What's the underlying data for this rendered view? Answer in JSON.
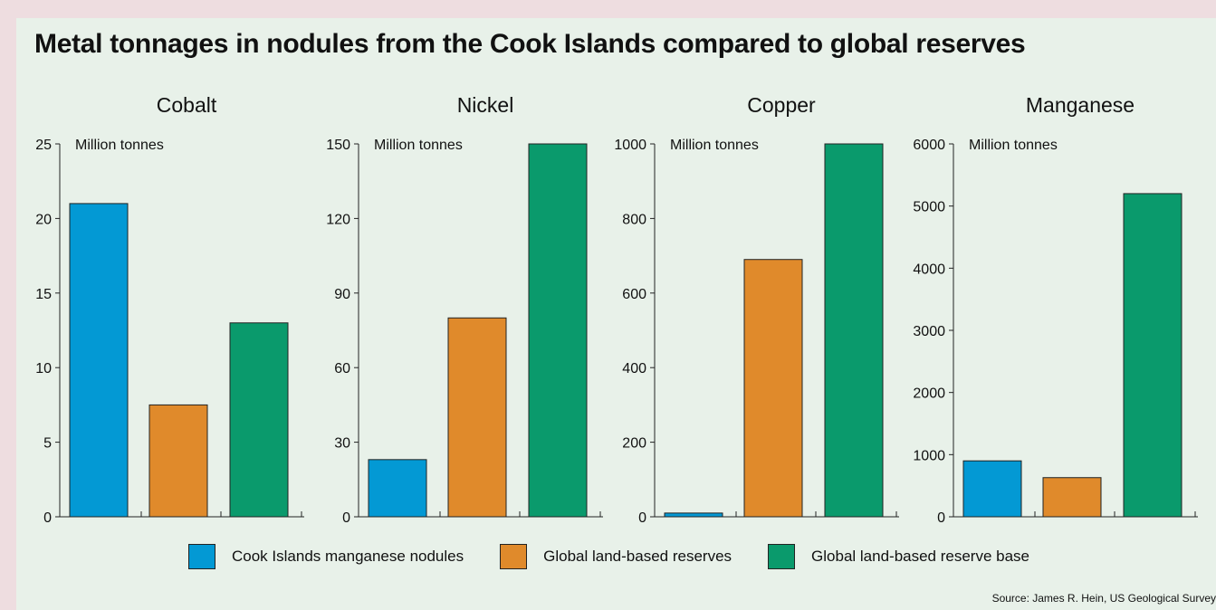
{
  "title": "Metal tonnages in nodules from the Cook Islands compared to global reserves",
  "source": "Source: James R. Hein, US Geological Survey",
  "colors": {
    "cook_islands": "#0399d4",
    "reserves": "#e08a2b",
    "reserve_base": "#0a9a6c"
  },
  "legend": [
    {
      "label": "Cook Islands manganese nodules",
      "color": "#0399d4"
    },
    {
      "label": "Global land-based reserves",
      "color": "#e08a2b"
    },
    {
      "label": "Global land-based reserve base",
      "color": "#0a9a6c"
    }
  ],
  "chart_data": [
    {
      "type": "bar",
      "title": "Cobalt",
      "unit_label": "Million tonnes",
      "categories": [
        "Cook Islands manganese nodules",
        "Global land-based reserves",
        "Global land-based reserve base"
      ],
      "values": [
        21,
        7.5,
        13
      ],
      "ylim": [
        0,
        25
      ],
      "yticks": [
        0,
        5,
        10,
        15,
        20,
        25
      ]
    },
    {
      "type": "bar",
      "title": "Nickel",
      "unit_label": "Million tonnes",
      "categories": [
        "Cook Islands manganese nodules",
        "Global land-based reserves",
        "Global land-based reserve base"
      ],
      "values": [
        23,
        80,
        150
      ],
      "ylim": [
        0,
        150
      ],
      "yticks": [
        0,
        30,
        60,
        90,
        120,
        150
      ]
    },
    {
      "type": "bar",
      "title": "Copper",
      "unit_label": "Million tonnes",
      "categories": [
        "Cook Islands manganese nodules",
        "Global land-based reserves",
        "Global land-based reserve base"
      ],
      "values": [
        10,
        690,
        1000
      ],
      "ylim": [
        0,
        1000
      ],
      "yticks": [
        0,
        200,
        400,
        600,
        800,
        1000
      ]
    },
    {
      "type": "bar",
      "title": "Manganese",
      "unit_label": "Million tonnes",
      "categories": [
        "Cook Islands manganese nodules",
        "Global land-based reserves",
        "Global land-based reserve base"
      ],
      "values": [
        900,
        630,
        5200
      ],
      "ylim": [
        0,
        6000
      ],
      "yticks": [
        0,
        1000,
        2000,
        3000,
        4000,
        5000,
        6000
      ]
    }
  ]
}
